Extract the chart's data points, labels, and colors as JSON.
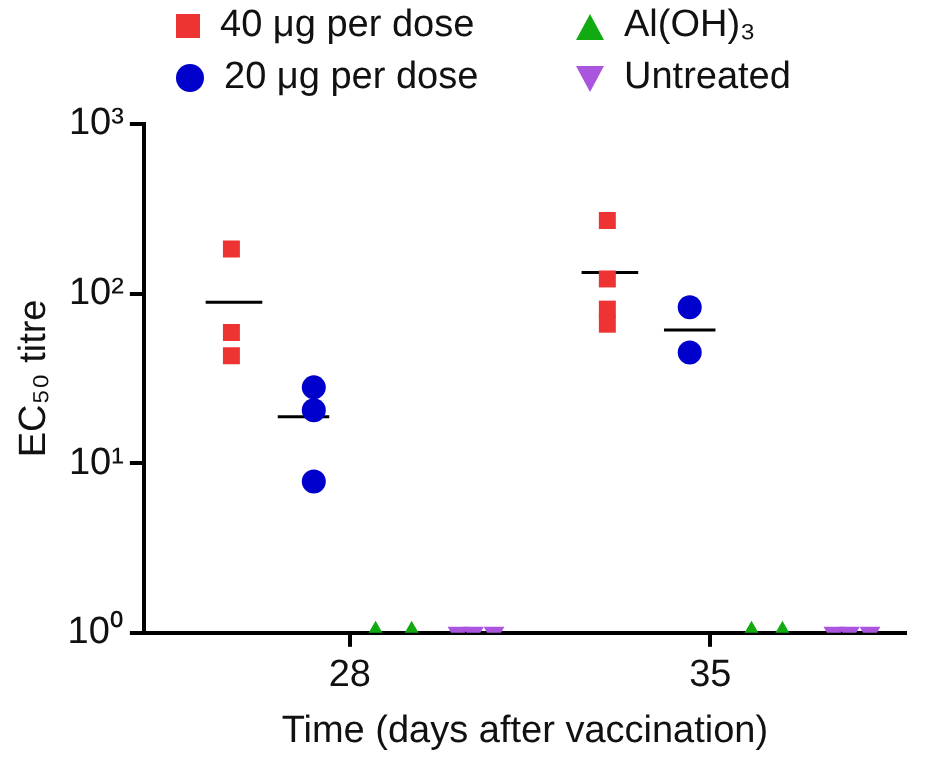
{
  "chart_data": {
    "type": "scatter",
    "xlabel": "Time (days after vaccination)",
    "ylabel": "EC₅₀ titre",
    "log": "y",
    "ylim": [
      1,
      1000
    ],
    "yticks": [
      {
        "value": 1,
        "label": "10⁰"
      },
      {
        "value": 10,
        "label": "10¹"
      },
      {
        "value": 100,
        "label": "10²"
      },
      {
        "value": 1000,
        "label": "10³"
      }
    ],
    "xlim": [
      24,
      38.8
    ],
    "xticks": [
      28,
      35
    ],
    "grid": false,
    "legend": "top",
    "series": [
      {
        "name": "40 μg per dose",
        "color": "#ee3333",
        "marker": "square",
        "x": [
          25.7,
          25.7,
          25.7,
          33.0,
          33.0,
          33.0,
          33.0
        ],
        "values": [
          183,
          59,
          43,
          270,
          122,
          81,
          66
        ]
      },
      {
        "name": "20 μg per dose",
        "color": "#0000cc",
        "marker": "circle",
        "x": [
          27.3,
          27.3,
          27.3,
          34.6,
          34.6
        ],
        "values": [
          28,
          20.5,
          7.8,
          83,
          45
        ]
      },
      {
        "name": "Al(OH)₃",
        "color": "#11aa11",
        "marker": "triangle",
        "x": [
          28.5,
          29.2,
          35.8,
          36.4
        ],
        "values": [
          1,
          1,
          1,
          1
        ]
      },
      {
        "name": "Untreated",
        "color": "#aa55dd",
        "marker": "triangle-down",
        "x": [
          30.1,
          30.4,
          30.8,
          37.4,
          37.7,
          38.1
        ],
        "values": [
          1,
          1,
          1,
          1,
          1,
          1
        ]
      },
      {
        "type": "line",
        "color": "#000000",
        "marker": "none",
        "x": [
          25.2,
          26.3
        ],
        "values": [
          89,
          89
        ]
      },
      {
        "type": "line",
        "color": "#000000",
        "marker": "none",
        "x": [
          26.6,
          27.6
        ],
        "values": [
          18.8,
          18.8
        ]
      },
      {
        "type": "line",
        "color": "#000000",
        "marker": "none",
        "x": [
          32.5,
          33.6
        ],
        "values": [
          133,
          133
        ]
      },
      {
        "type": "line",
        "color": "#000000",
        "marker": "none",
        "x": [
          34.1,
          35.1
        ],
        "values": [
          61,
          61
        ]
      }
    ]
  }
}
